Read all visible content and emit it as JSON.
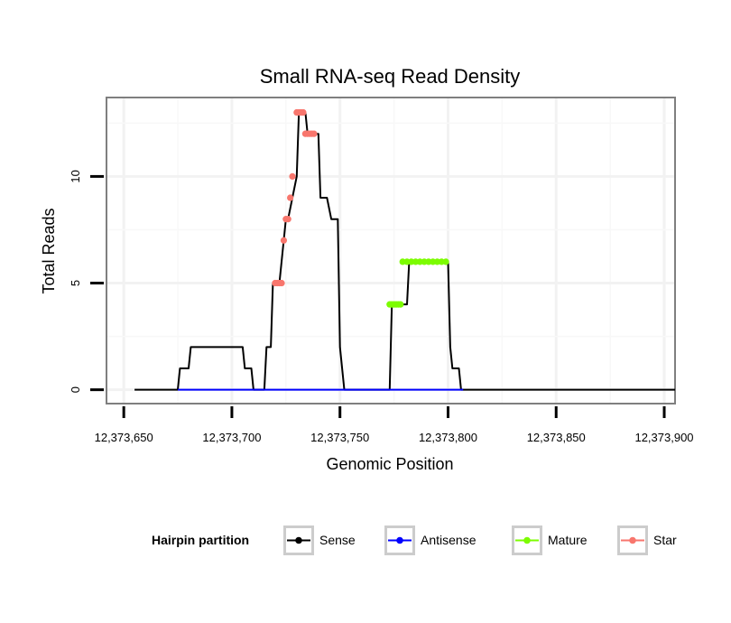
{
  "chart_data": {
    "type": "line",
    "title": "Small RNA-seq Read Density",
    "xlabel": "Genomic Position",
    "ylabel": "Total Reads",
    "xlim": [
      12373642,
      12373905
    ],
    "ylim": [
      -0.65,
      13.7
    ],
    "x_ticks": [
      12373650,
      12373700,
      12373750,
      12373800,
      12373850,
      12373900
    ],
    "x_tick_labels": [
      "12,373,650",
      "12,373,700",
      "12,373,750",
      "12,373,800",
      "12,373,850",
      "12,373,900"
    ],
    "y_ticks": [
      0,
      5,
      10
    ],
    "y_tick_labels": [
      "0",
      "5",
      "10"
    ],
    "grid": true,
    "legend": {
      "title": "Hairpin partition",
      "position": "bottom",
      "entries": [
        {
          "name": "Sense",
          "color": "#000000"
        },
        {
          "name": "Antisense",
          "color": "#0000ff"
        },
        {
          "name": "Mature",
          "color": "#7cfc00"
        },
        {
          "name": "Star",
          "color": "#f8766d"
        }
      ]
    },
    "series": [
      {
        "name": "Sense",
        "color": "#000000",
        "x": [
          12373655,
          12373675,
          12373676,
          12373680,
          12373681,
          12373705,
          12373706,
          12373709,
          12373710,
          12373715,
          12373716,
          12373718,
          12373719,
          12373721,
          12373722,
          12373724,
          12373725,
          12373726,
          12373728,
          12373730,
          12373731,
          12373732,
          12373734,
          12373735,
          12373737,
          12373740,
          12373741,
          12373743,
          12373744,
          12373746,
          12373747,
          12373749,
          12373750,
          12373752,
          12373753,
          12373773,
          12373774,
          12373778,
          12373779,
          12373781,
          12373782,
          12373800,
          12373801,
          12373802,
          12373803,
          12373805,
          12373806,
          12373807,
          12373808,
          12373905
        ],
        "y": [
          0,
          0,
          1,
          1,
          2,
          2,
          1,
          1,
          0,
          0,
          2,
          2,
          5,
          5,
          5,
          7,
          8,
          8,
          9,
          10,
          13,
          13,
          13,
          12,
          12,
          12,
          9,
          9,
          9,
          8,
          8,
          8,
          2,
          0,
          0,
          0,
          4,
          4,
          4,
          4,
          6,
          6,
          2,
          1,
          1,
          1,
          0,
          0,
          0,
          0
        ]
      },
      {
        "name": "Antisense",
        "color": "#0000ff",
        "x": [
          12373675,
          12373807
        ],
        "y": [
          0,
          0
        ]
      },
      {
        "name": "Mature",
        "color": "#7cfc00",
        "points": [
          {
            "x": 12373773,
            "y": 4
          },
          {
            "x": 12373774,
            "y": 4
          },
          {
            "x": 12373775,
            "y": 4
          },
          {
            "x": 12373776,
            "y": 4
          },
          {
            "x": 12373777,
            "y": 4
          },
          {
            "x": 12373778,
            "y": 4
          },
          {
            "x": 12373779,
            "y": 6
          },
          {
            "x": 12373781,
            "y": 6
          },
          {
            "x": 12373783,
            "y": 6
          },
          {
            "x": 12373785,
            "y": 6
          },
          {
            "x": 12373787,
            "y": 6
          },
          {
            "x": 12373789,
            "y": 6
          },
          {
            "x": 12373791,
            "y": 6
          },
          {
            "x": 12373793,
            "y": 6
          },
          {
            "x": 12373795,
            "y": 6
          },
          {
            "x": 12373797,
            "y": 6
          },
          {
            "x": 12373799,
            "y": 6
          }
        ]
      },
      {
        "name": "Star",
        "color": "#f8766d",
        "points": [
          {
            "x": 12373720,
            "y": 5
          },
          {
            "x": 12373721,
            "y": 5
          },
          {
            "x": 12373722,
            "y": 5
          },
          {
            "x": 12373723,
            "y": 5
          },
          {
            "x": 12373724,
            "y": 7
          },
          {
            "x": 12373725,
            "y": 8
          },
          {
            "x": 12373726,
            "y": 8
          },
          {
            "x": 12373727,
            "y": 9
          },
          {
            "x": 12373728,
            "y": 10
          },
          {
            "x": 12373730,
            "y": 13
          },
          {
            "x": 12373731,
            "y": 13
          },
          {
            "x": 12373732,
            "y": 13
          },
          {
            "x": 12373733,
            "y": 13
          },
          {
            "x": 12373734,
            "y": 12
          },
          {
            "x": 12373735,
            "y": 12
          },
          {
            "x": 12373736,
            "y": 12
          },
          {
            "x": 12373737,
            "y": 12
          },
          {
            "x": 12373738,
            "y": 12
          }
        ]
      }
    ]
  }
}
